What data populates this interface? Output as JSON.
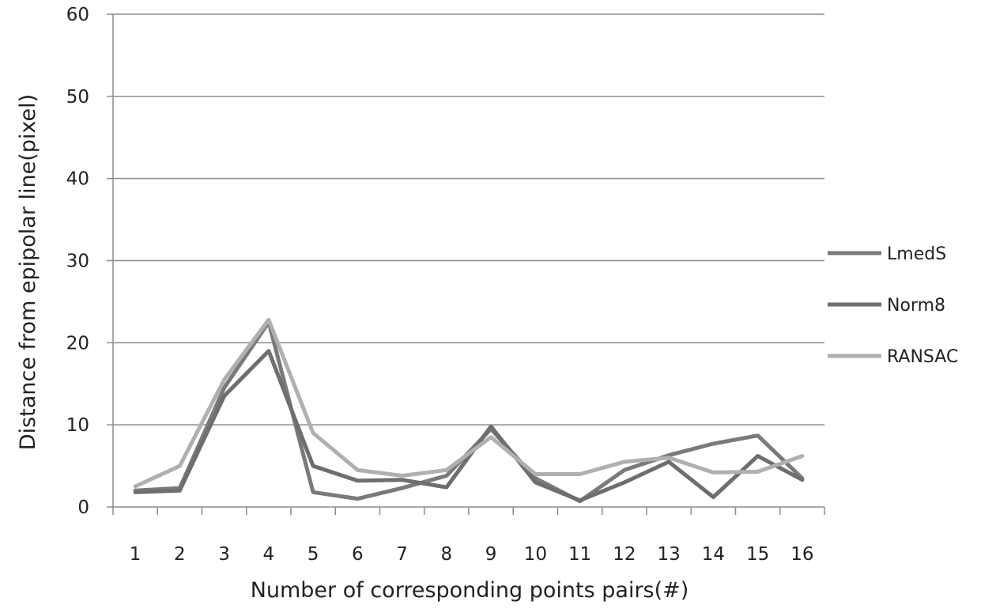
{
  "chart_data": {
    "type": "line",
    "title": "",
    "xlabel": "Number of corresponding points pairs(#)",
    "ylabel": "Distance from epipolar line(pixel)",
    "categories": [
      "1",
      "2",
      "3",
      "4",
      "5",
      "6",
      "7",
      "8",
      "9",
      "10",
      "11",
      "12",
      "13",
      "14",
      "15",
      "16"
    ],
    "ylim": [
      0,
      60
    ],
    "yticks": [
      0,
      10,
      20,
      30,
      40,
      50,
      60
    ],
    "grid": true,
    "legend_position": "right",
    "series": [
      {
        "name": "LmedS",
        "color": "#7a7a7a",
        "values": [
          2.0,
          2.3,
          14.5,
          22.5,
          1.8,
          1.0,
          2.3,
          3.8,
          9.5,
          3.5,
          0.7,
          4.5,
          6.3,
          7.7,
          8.7,
          3.5
        ]
      },
      {
        "name": "Norm8",
        "color": "#6e6e6e",
        "values": [
          1.8,
          2.0,
          13.5,
          19.0,
          5.0,
          3.2,
          3.3,
          2.4,
          9.8,
          3.0,
          0.8,
          3.0,
          5.5,
          1.2,
          6.2,
          3.3
        ]
      },
      {
        "name": "RANSAC",
        "color": "#b0b0b0",
        "values": [
          2.5,
          5.0,
          15.5,
          22.8,
          9.0,
          4.5,
          3.8,
          4.5,
          8.5,
          4.0,
          4.0,
          5.5,
          6.0,
          4.2,
          4.3,
          6.2
        ]
      }
    ]
  }
}
